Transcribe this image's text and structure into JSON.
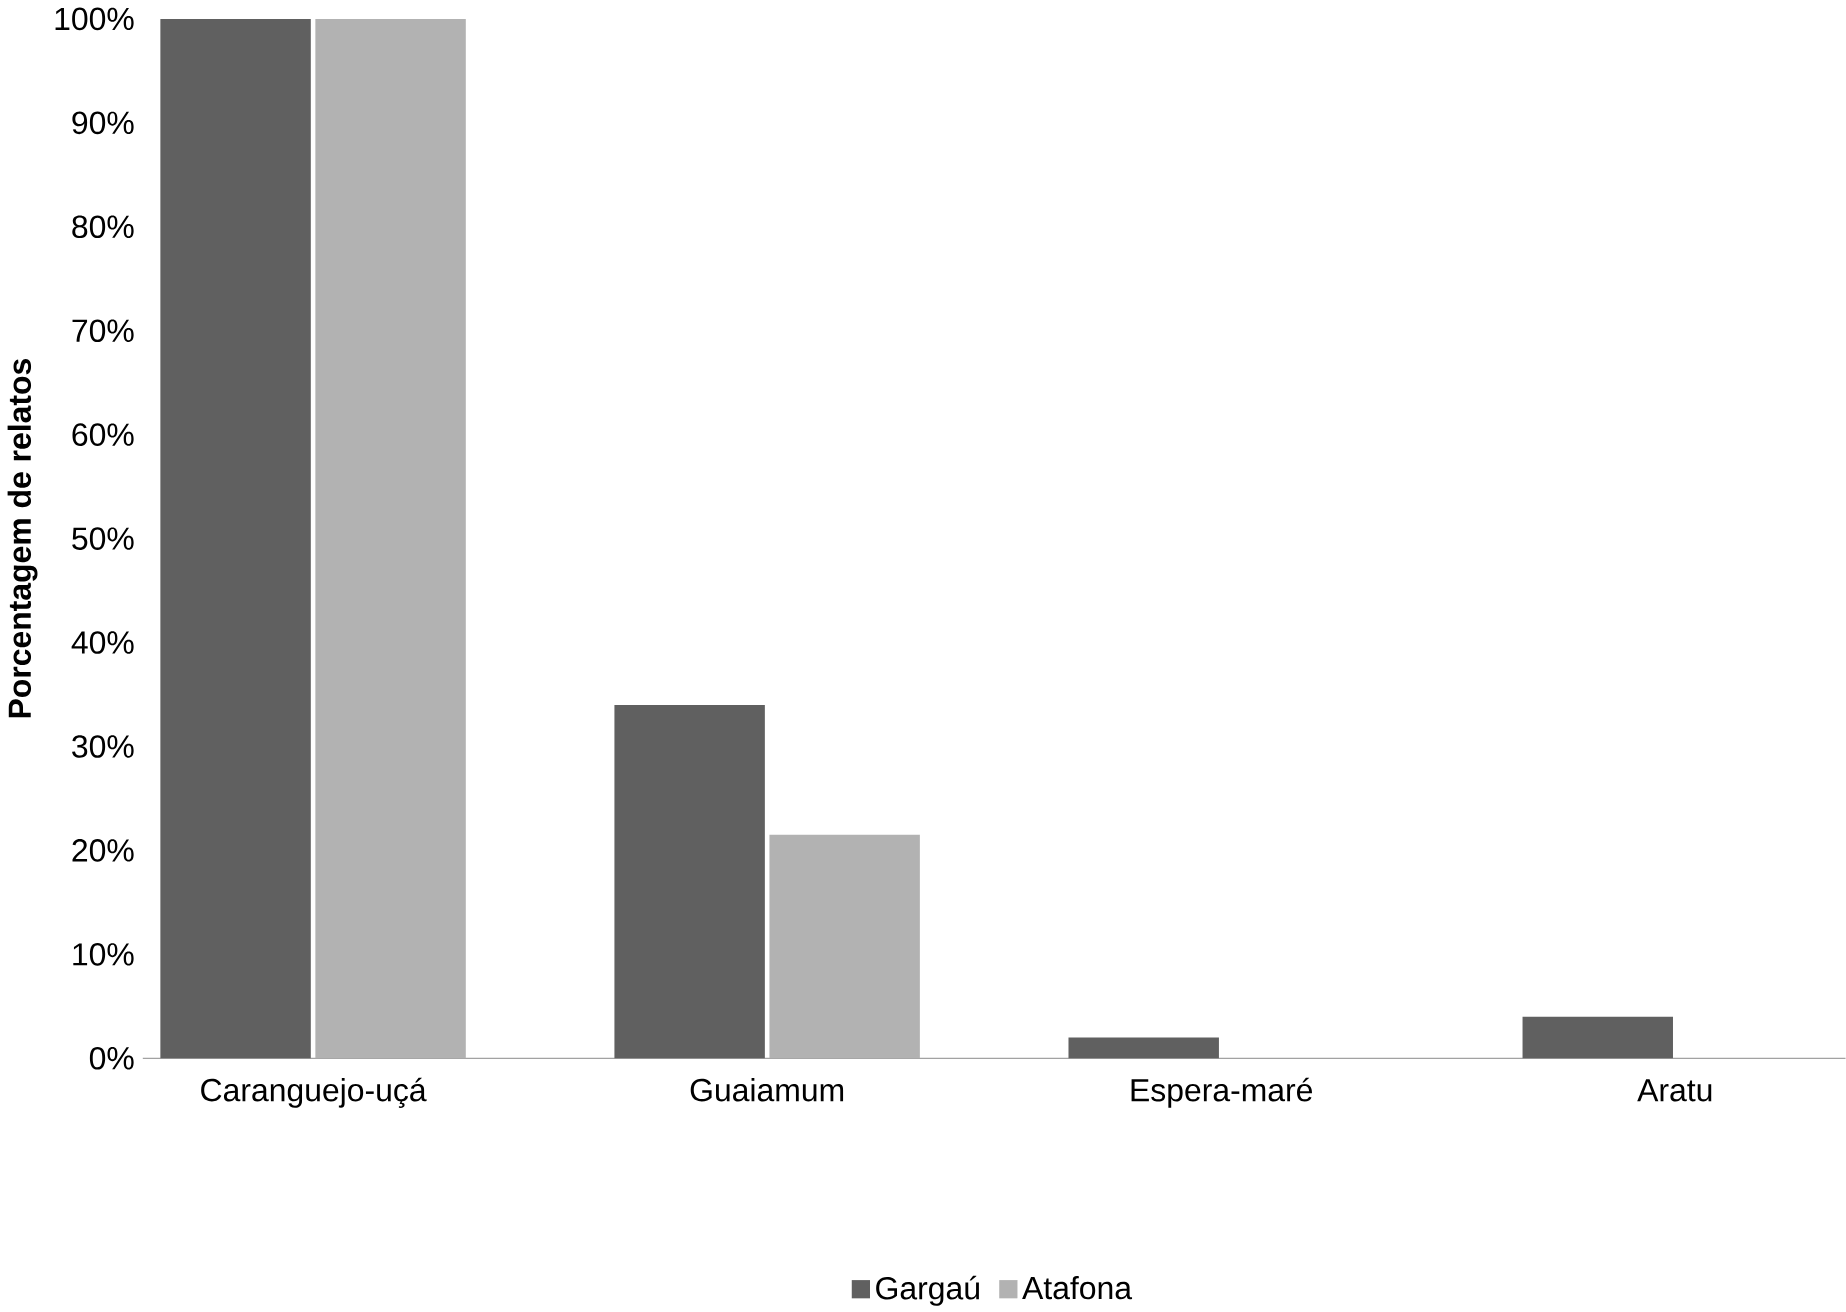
{
  "chart_data": {
    "type": "bar",
    "ylabel": "Porcentagem de relatos",
    "categories": [
      "Caranguejo-uçá",
      "Guaiamum",
      "Espera-maré",
      "Aratu"
    ],
    "series": [
      {
        "name": "Gargaú",
        "color": "#606060",
        "values": [
          100,
          34,
          2,
          4
        ]
      },
      {
        "name": "Atafona",
        "color": "#b2b2b2",
        "values": [
          100,
          21.5,
          null,
          null
        ]
      }
    ],
    "ylim": [
      0,
      100
    ],
    "yticks": [
      {
        "value": 0,
        "label": "0%"
      },
      {
        "value": 10,
        "label": "10%"
      },
      {
        "value": 20,
        "label": "20%"
      },
      {
        "value": 30,
        "label": "30%"
      },
      {
        "value": 40,
        "label": "40%"
      },
      {
        "value": 50,
        "label": "50%"
      },
      {
        "value": 60,
        "label": "60%"
      },
      {
        "value": 70,
        "label": "70%"
      },
      {
        "value": 80,
        "label": "80%"
      },
      {
        "value": 90,
        "label": "90%"
      },
      {
        "value": 100,
        "label": "100%"
      }
    ],
    "legend": "bottom"
  }
}
